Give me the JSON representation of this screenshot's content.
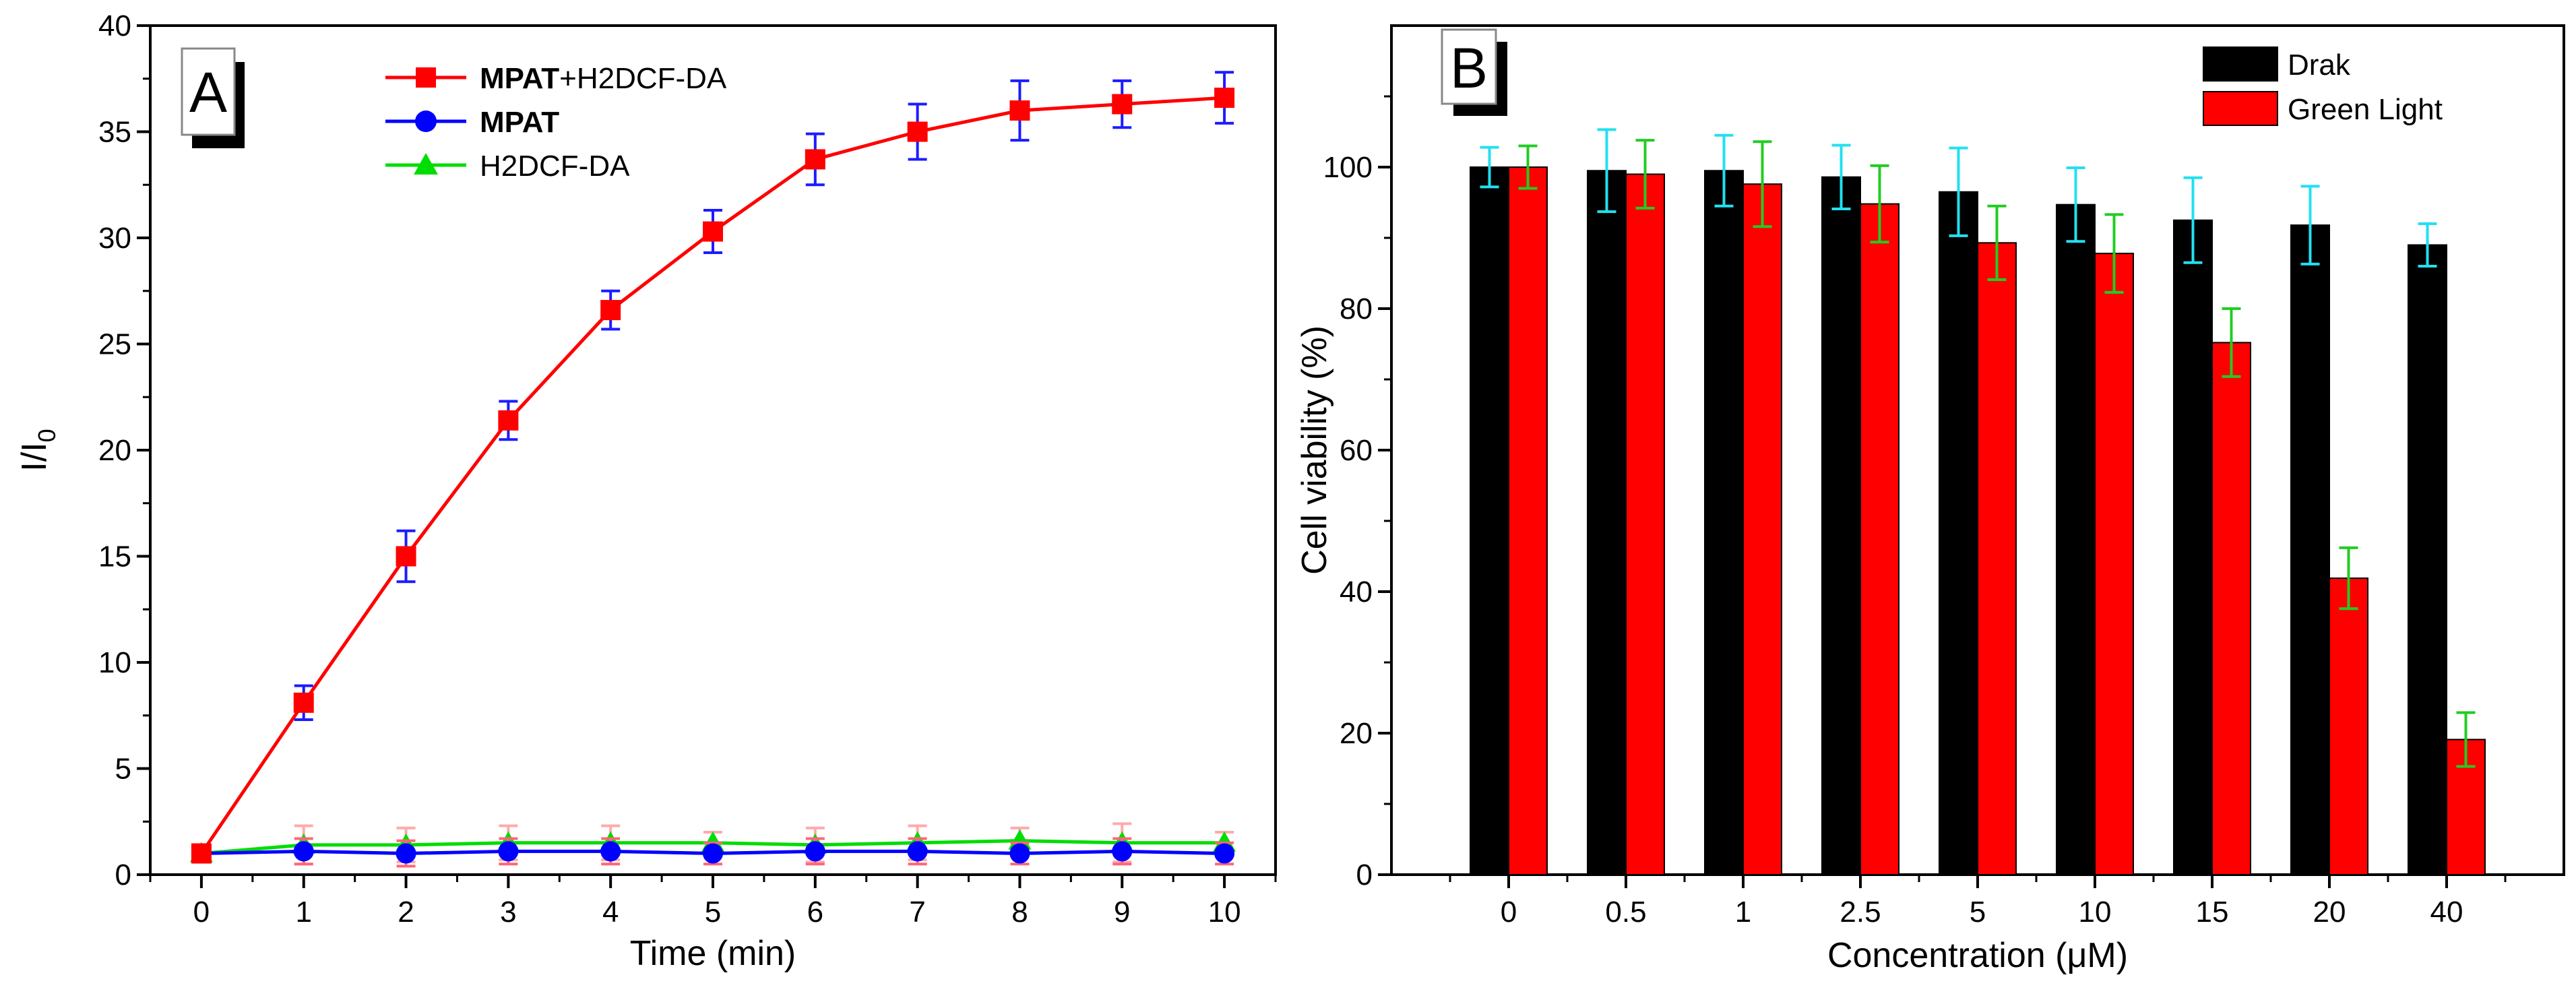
{
  "chart_data": [
    {
      "panel": "A",
      "type": "line",
      "xlabel": "Time (min)",
      "ylabel_main": "I/I",
      "ylabel_sub": "0",
      "xlim": [
        -0.5,
        10.5
      ],
      "ylim": [
        0,
        40
      ],
      "x": [
        0,
        1,
        2,
        3,
        4,
        5,
        6,
        7,
        8,
        9,
        10
      ],
      "xticks": [
        "0",
        "1",
        "2",
        "3",
        "4",
        "5",
        "6",
        "7",
        "8",
        "9",
        "10"
      ],
      "yticks": [
        "0",
        "5",
        "10",
        "15",
        "20",
        "25",
        "30",
        "35",
        "40"
      ],
      "legend_position": "top-center",
      "series": [
        {
          "name_bold": "MPAT",
          "name_rest": "+H2DCF-DA",
          "color": "#ff0000",
          "errcolor": "#1c1cff",
          "marker": "square",
          "values": [
            1.0,
            8.1,
            15.0,
            21.4,
            26.6,
            30.3,
            33.7,
            35.0,
            36.0,
            36.3,
            36.6
          ],
          "errors": [
            0.3,
            0.8,
            1.2,
            0.9,
            0.9,
            1.0,
            1.2,
            1.3,
            1.4,
            1.1,
            1.2
          ]
        },
        {
          "name_bold": "MPAT",
          "name_rest": "",
          "color": "#0000ff",
          "errcolor": "#ff6677",
          "marker": "circle",
          "values": [
            1.0,
            1.1,
            1.0,
            1.1,
            1.1,
            1.0,
            1.1,
            1.1,
            1.0,
            1.1,
            1.0
          ],
          "errors": [
            0.3,
            0.6,
            0.6,
            0.6,
            0.6,
            0.5,
            0.6,
            0.6,
            0.5,
            0.6,
            0.5
          ]
        },
        {
          "name_bold": "",
          "name_rest": "H2DCF-DA",
          "color": "#00dd00",
          "errcolor": "#ffaaaa",
          "marker": "triangle",
          "values": [
            1.0,
            1.4,
            1.4,
            1.5,
            1.5,
            1.5,
            1.4,
            1.5,
            1.6,
            1.5,
            1.5
          ],
          "errors": [
            0.3,
            0.9,
            0.8,
            0.8,
            0.8,
            0.5,
            0.8,
            0.8,
            0.6,
            0.9,
            0.5
          ]
        }
      ]
    },
    {
      "panel": "B",
      "type": "bar",
      "xlabel": "Concentration (μM)",
      "ylabel": "Cell viability (%)",
      "ylim": [
        0,
        120
      ],
      "categories": [
        "0",
        "0.5",
        "1",
        "2.5",
        "5",
        "10",
        "15",
        "20",
        "40"
      ],
      "yticks": [
        "0",
        "20",
        "40",
        "60",
        "80",
        "100"
      ],
      "legend_position": "top-right",
      "series": [
        {
          "name": "Drak",
          "color": "#000000",
          "errcolor": "#22e0f0",
          "values": [
            100,
            99.5,
            99.5,
            98.6,
            96.5,
            94.7,
            92.5,
            91.8,
            89.0
          ],
          "errors": [
            2.8,
            5.8,
            5.0,
            4.5,
            6.2,
            5.2,
            6.0,
            5.5,
            3.0
          ]
        },
        {
          "name": "Green Light",
          "color": "#ff0000",
          "errcolor": "#22cc22",
          "values": [
            100,
            99.0,
            97.6,
            94.8,
            89.3,
            87.8,
            75.2,
            41.9,
            19.1
          ],
          "errors": [
            3.0,
            4.8,
            6.0,
            5.4,
            5.2,
            5.5,
            4.8,
            4.3,
            3.8
          ]
        }
      ]
    }
  ]
}
